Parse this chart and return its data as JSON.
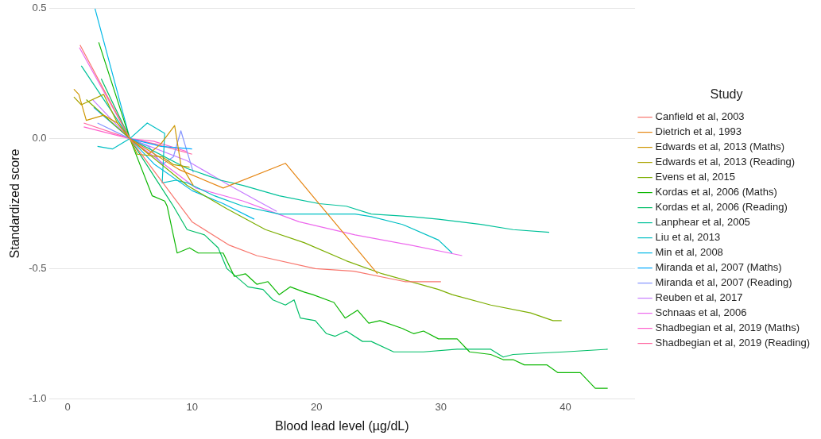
{
  "chart_data": {
    "type": "line",
    "xlabel": "Blood lead level (µg/dL)",
    "ylabel": "Standardized score",
    "legend_title": "Study",
    "legend": "right",
    "grid": "y",
    "marker": "none",
    "xlim": [
      -1.5,
      45.6
    ],
    "ylim": [
      -1,
      0.5
    ],
    "xticks": [
      0,
      10,
      20,
      30,
      40
    ],
    "yticks": [
      {
        "value": -1,
        "label": "-1.0"
      },
      {
        "value": -0.5,
        "label": "-0.5"
      },
      {
        "value": 0,
        "label": "0.0"
      },
      {
        "value": 0.5,
        "label": "0.5"
      }
    ],
    "series": [
      {
        "name": "Canfield et al, 2003",
        "color": "#f8766d",
        "x": [
          1,
          5,
          10,
          13,
          15.2,
          19.9,
          23,
          27.1,
          30
        ],
        "values": [
          0.36,
          0,
          -0.32,
          -0.41,
          -0.45,
          -0.5,
          -0.51,
          -0.55,
          -0.55
        ]
      },
      {
        "name": "Dietrich et al, 1993",
        "color": "#e68613",
        "x": [
          5,
          9,
          12.5,
          17.5,
          24.9
        ],
        "values": [
          0,
          -0.12,
          -0.19,
          -0.095,
          -0.52
        ]
      },
      {
        "name": "Edwards et al, 2013 (Maths)",
        "color": "#cd9600",
        "x": [
          0.5,
          0.9,
          1.5,
          2.9,
          4,
          5,
          6.5,
          7.5,
          8.6,
          9.1,
          10.1
        ],
        "values": [
          0.19,
          0.17,
          0.07,
          0.09,
          0.06,
          0,
          -0.06,
          -0.02,
          0.05,
          -0.1,
          -0.18
        ]
      },
      {
        "name": "Edwards et al, 2013 (Reading)",
        "color": "#aba300",
        "x": [
          0.5,
          1.1,
          2.9,
          4,
          5,
          5.6,
          7.6,
          8.5,
          9.8
        ],
        "values": [
          0.16,
          0.13,
          0.17,
          0.06,
          0,
          -0.06,
          -0.07,
          -0.1,
          -0.11
        ]
      },
      {
        "name": "Evens et al, 2015",
        "color": "#7cae00",
        "x": [
          1.5,
          5,
          9.6,
          12.8,
          15.9,
          19,
          22.4,
          25.3,
          29.8,
          30.9,
          34,
          37.2,
          39,
          39.7
        ],
        "values": [
          0.15,
          0,
          -0.18,
          -0.27,
          -0.35,
          -0.4,
          -0.47,
          -0.52,
          -0.58,
          -0.6,
          -0.64,
          -0.67,
          -0.7,
          -0.7
        ]
      },
      {
        "name": "Kordas et al, 2006 (Maths)",
        "color": "#0cb702",
        "x": [
          2.5,
          5,
          6.8,
          7.8,
          8,
          8.8,
          9.8,
          10.5,
          12.5,
          13.4,
          14.3,
          15.2,
          16.1,
          17,
          17.9,
          19,
          19.7,
          21.4,
          22.3,
          23.3,
          24.2,
          25.1,
          26.9,
          27.8,
          28.6,
          29.8,
          31.3,
          32.3,
          34,
          35,
          35.8,
          36.7,
          38.5,
          39.4,
          41.2,
          42.4,
          43.4
        ],
        "values": [
          0.37,
          0,
          -0.22,
          -0.24,
          -0.26,
          -0.44,
          -0.42,
          -0.44,
          -0.44,
          -0.53,
          -0.52,
          -0.56,
          -0.55,
          -0.6,
          -0.57,
          -0.59,
          -0.6,
          -0.63,
          -0.69,
          -0.66,
          -0.71,
          -0.7,
          -0.73,
          -0.75,
          -0.74,
          -0.77,
          -0.77,
          -0.82,
          -0.83,
          -0.85,
          -0.85,
          -0.87,
          -0.87,
          -0.9,
          -0.9,
          -0.96,
          -0.96
        ]
      },
      {
        "name": "Kordas et al, 2006 (Reading)",
        "color": "#00be67",
        "x": [
          2.7,
          5,
          8.5,
          9.6,
          11,
          12.1,
          12.8,
          14.5,
          15.7,
          16.5,
          17.5,
          18.2,
          18.7,
          19.9,
          20.8,
          21.5,
          22.4,
          23.7,
          24.4,
          26.2,
          28.6,
          31.3,
          34,
          35,
          35.8,
          39.9,
          43.4
        ],
        "values": [
          0.23,
          0,
          -0.26,
          -0.35,
          -0.37,
          -0.42,
          -0.5,
          -0.57,
          -0.58,
          -0.62,
          -0.64,
          -0.62,
          -0.69,
          -0.7,
          -0.75,
          -0.76,
          -0.74,
          -0.78,
          -0.78,
          -0.82,
          -0.82,
          -0.81,
          -0.81,
          -0.84,
          -0.83,
          -0.82,
          -0.81
        ]
      },
      {
        "name": "Lanphear et al, 2005",
        "color": "#00c19a",
        "x": [
          1.1,
          5,
          9.6,
          12.3,
          14.1,
          17,
          20.2,
          22.4,
          24.4,
          27.6,
          29.8,
          33.2,
          35.8,
          38.7
        ],
        "values": [
          0.28,
          0,
          -0.115,
          -0.16,
          -0.18,
          -0.22,
          -0.25,
          -0.26,
          -0.29,
          -0.3,
          -0.31,
          -0.33,
          -0.35,
          -0.36
        ]
      },
      {
        "name": "Liu et al, 2013",
        "color": "#00bfc4",
        "x": [
          2.4,
          3.6,
          5,
          6.4,
          7.8,
          7.6,
          8.7,
          9.6,
          11.8,
          14.1,
          17,
          23.1,
          24.4,
          26.9,
          29.8,
          30.9
        ],
        "values": [
          -0.03,
          -0.04,
          0,
          0.06,
          0.02,
          -0.17,
          -0.16,
          -0.17,
          -0.22,
          -0.26,
          -0.29,
          -0.29,
          -0.3,
          -0.33,
          -0.39,
          -0.44
        ]
      },
      {
        "name": "Min et al, 2008",
        "color": "#00b8e7",
        "x": [
          2.2,
          5,
          7,
          10,
          12.5,
          15
        ],
        "values": [
          0.5,
          0,
          -0.1,
          -0.2,
          -0.25,
          -0.31
        ]
      },
      {
        "name": "Miranda et al, 2007 (Maths)",
        "color": "#00a9ff",
        "x": [
          2.1,
          5,
          7.5,
          10
        ],
        "values": [
          0.12,
          0,
          -0.03,
          -0.04
        ]
      },
      {
        "name": "Miranda et al, 2007 (Reading)",
        "color": "#8494ff",
        "x": [
          2.4,
          5,
          6.5,
          7.6,
          8.5,
          9.1,
          10.1
        ],
        "values": [
          0.06,
          0,
          -0.03,
          -0.1,
          -0.07,
          0.03,
          -0.13
        ]
      },
      {
        "name": "Reuben et al, 2017",
        "color": "#c77cff",
        "x": [
          2,
          5,
          9.6,
          13,
          16.8
        ],
        "values": [
          0.15,
          0,
          -0.085,
          -0.18,
          -0.28
        ]
      },
      {
        "name": "Schnaas et al, 2006",
        "color": "#ed68ed",
        "x": [
          0.95,
          5,
          10.3,
          14.1,
          18.6,
          23.1,
          27.6,
          31.7
        ],
        "values": [
          0.35,
          0,
          -0.19,
          -0.24,
          -0.32,
          -0.37,
          -0.41,
          -0.45
        ]
      },
      {
        "name": "Shadbegian et al, 2019 (Maths)",
        "color": "#ff61cc",
        "x": [
          1.3,
          5,
          6.9,
          9.6
        ],
        "values": [
          0.045,
          0,
          -0.01,
          -0.05
        ]
      },
      {
        "name": "Shadbegian et al, 2019 (Reading)",
        "color": "#ff68a1",
        "x": [
          1.3,
          5,
          7,
          10
        ],
        "values": [
          0.06,
          0,
          -0.02,
          -0.06
        ]
      }
    ]
  }
}
